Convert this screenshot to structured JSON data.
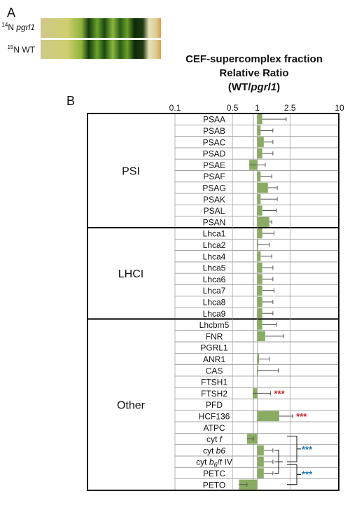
{
  "panel_a": {
    "letter": "A",
    "lane_labels": [
      {
        "isotope": "14",
        "text": "N ",
        "italic": "pgrl1"
      },
      {
        "isotope": "15",
        "text": "N WT",
        "italic": ""
      }
    ]
  },
  "panel_b": {
    "letter": "B",
    "title_lines": [
      "CEF-supercomplex fraction",
      "Relative Ratio",
      "(WT/"
    ],
    "title_italic": "pgrl1",
    "title_close": ")"
  },
  "chart_data": {
    "type": "bar",
    "orientation": "horizontal",
    "xscale": "log",
    "xlim": [
      0.1,
      10
    ],
    "xticks": [
      0.1,
      0.5,
      1,
      2.5,
      10
    ],
    "xtick_labels": [
      "0.1",
      "0.5",
      "1",
      "2.5",
      "10"
    ],
    "bar_color": "#8aab62",
    "groups": [
      {
        "name": "PSI",
        "rows": [
          {
            "label": "PSAA",
            "value": 1.15,
            "err": 2.25
          },
          {
            "label": "PSAB",
            "value": 1.1,
            "err": 1.55
          },
          {
            "label": "PSAC",
            "value": 1.2,
            "err": 1.55
          },
          {
            "label": "PSAD",
            "value": 1.15,
            "err": 1.55
          },
          {
            "label": "PSAE",
            "value": 0.8,
            "err": 1.25
          },
          {
            "label": "PSAF",
            "value": 1.1,
            "err": 1.5
          },
          {
            "label": "PSAG",
            "value": 1.35,
            "err": 1.75
          },
          {
            "label": "PSAK",
            "value": 1.1,
            "err": 1.75
          },
          {
            "label": "PSAL",
            "value": 1.15,
            "err": 1.7
          },
          {
            "label": "PSAN",
            "value": 1.4,
            "err": 1.5
          }
        ]
      },
      {
        "name": "LHCI",
        "rows": [
          {
            "label": "Lhca1",
            "value": 1.15,
            "err": 1.6
          },
          {
            "label": "Lhca2",
            "value": 1.0,
            "err": 1.4
          },
          {
            "label": "Lhca4",
            "value": 1.1,
            "err": 1.5
          },
          {
            "label": "Lhca5",
            "value": 1.15,
            "err": 1.55
          },
          {
            "label": "Lhca6",
            "value": 1.15,
            "err": 1.55
          },
          {
            "label": "Lhca7",
            "value": 1.15,
            "err": 1.6
          },
          {
            "label": "Lhca8",
            "value": 1.15,
            "err": 1.55
          },
          {
            "label": "Lhca9",
            "value": 1.15,
            "err": 1.55
          }
        ]
      },
      {
        "name": "Other",
        "rows": [
          {
            "label": "Lhcbm5",
            "value": 1.15,
            "err": 1.7
          },
          {
            "label": "FNR",
            "value": 1.25,
            "err": 2.1
          },
          {
            "label": "PGRL1",
            "value": null,
            "err": null
          },
          {
            "label": "ANR1",
            "value": 1.05,
            "err": 1.4
          },
          {
            "label": "CAS",
            "value": 1.02,
            "err": 1.8
          },
          {
            "label": "FTSH1",
            "value": null,
            "err": null
          },
          {
            "label": "FTSH2",
            "value": 0.88,
            "err": 1.45,
            "sig": "***",
            "sig_color": "#d62020"
          },
          {
            "label": "PFD",
            "value": null,
            "err": null
          },
          {
            "label": "HCF136",
            "value": 1.85,
            "err": 2.7,
            "sig": "***",
            "sig_color": "#d62020"
          },
          {
            "label": "ATPC",
            "value": null,
            "err": null
          },
          {
            "label": "cyt f",
            "value": 0.75,
            "err": 0.9
          },
          {
            "label": "cyt b6",
            "value": 1.2,
            "err": 1.55
          },
          {
            "label": "cyt b6/f IV",
            "value": 1.2,
            "err": 1.55
          },
          {
            "label": "PETC",
            "value": 1.2,
            "err": 1.55
          },
          {
            "label": "PETO",
            "value": 0.6,
            "err": 0.75
          }
        ]
      }
    ],
    "brackets": [
      {
        "sig": "***",
        "color": "#1a76b8"
      },
      {
        "sig": "***",
        "color": "#1a76b8"
      }
    ]
  },
  "row_labels_rich": {
    "cyt f": {
      "pre": "cyt ",
      "ital": "f",
      "sub": "",
      "post": ""
    },
    "cyt b6": {
      "pre": "cyt ",
      "ital": "b6",
      "sub": "",
      "post": ""
    },
    "cyt b6/f IV": {
      "pre": "cyt ",
      "ital": "b",
      "sub": "6",
      "post": "/f IV"
    }
  }
}
